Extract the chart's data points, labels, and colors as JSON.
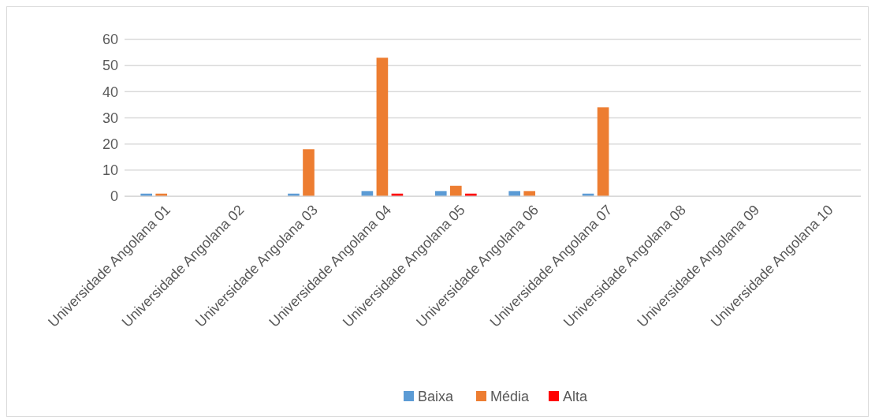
{
  "chart_data": {
    "type": "bar",
    "categories": [
      "Universidade Angolana 01",
      "Universidade Angolana 02",
      "Universidade Angolana 03",
      "Universidade Angolana 04",
      "Universidade Angolana 05",
      "Universidade Angolana 06",
      "Universidade Angolana 07",
      "Universidade Angolana 08",
      "Universidade Angolana 09",
      "Universidade Angolana 10"
    ],
    "series": [
      {
        "name": "Baixa",
        "color": "#5b9bd5",
        "values": [
          1,
          0,
          1,
          2,
          2,
          2,
          1,
          0,
          0,
          0
        ]
      },
      {
        "name": "Média",
        "color": "#ed7d31",
        "values": [
          1,
          0,
          18,
          53,
          4,
          2,
          34,
          0,
          0,
          0
        ]
      },
      {
        "name": "Alta",
        "color": "#ff0000",
        "values": [
          0,
          0,
          0,
          1,
          1,
          0,
          0,
          0,
          0,
          0
        ]
      }
    ],
    "ylim": [
      0,
      60
    ],
    "yticks": [
      0,
      10,
      20,
      30,
      40,
      50,
      60
    ],
    "grid": "y",
    "legend": "bottom"
  }
}
